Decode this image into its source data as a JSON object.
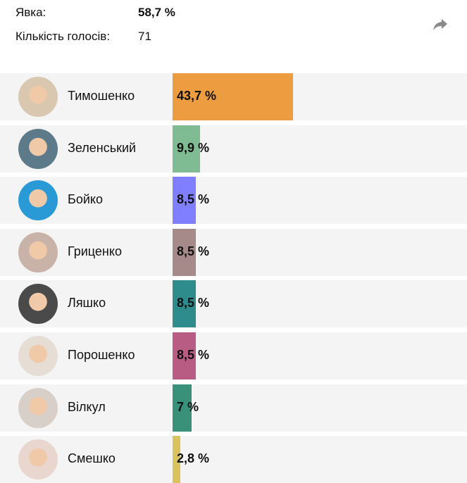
{
  "summary": {
    "turnout_label": "Явка:",
    "turnout_value": "58,7 %",
    "votes_label": "Кількість голосів:",
    "votes_value": "71"
  },
  "share_icon": "share-arrow-icon",
  "candidates": [
    {
      "name": "Тимошенко",
      "percent_label": "43,7 %",
      "percent": 43.7,
      "color": "#ED9C40",
      "avatar_bg": "#d9c7b0"
    },
    {
      "name": "Зеленський",
      "percent_label": "9,9 %",
      "percent": 9.9,
      "color": "#80BC93",
      "avatar_bg": "#5d7a8a"
    },
    {
      "name": "Бойко",
      "percent_label": "8,5 %",
      "percent": 8.5,
      "color": "#7F7FFF",
      "avatar_bg": "#2a9ad6"
    },
    {
      "name": "Гриценко",
      "percent_label": "8,5 %",
      "percent": 8.5,
      "color": "#A68A89",
      "avatar_bg": "#c9b3a8"
    },
    {
      "name": "Ляшко",
      "percent_label": "8,5 %",
      "percent": 8.5,
      "color": "#2E8C8C",
      "avatar_bg": "#4a4a4a"
    },
    {
      "name": "Порошенко",
      "percent_label": "8,5 %",
      "percent": 8.5,
      "color": "#B95C83",
      "avatar_bg": "#e6ddd5"
    },
    {
      "name": "Вілкул",
      "percent_label": "7 %",
      "percent": 7,
      "color": "#389178",
      "avatar_bg": "#d8cfc8"
    },
    {
      "name": "Смешко",
      "percent_label": "2,8 %",
      "percent": 2.8,
      "color": "#D9C35E",
      "avatar_bg": "#e8d6cf"
    }
  ]
}
